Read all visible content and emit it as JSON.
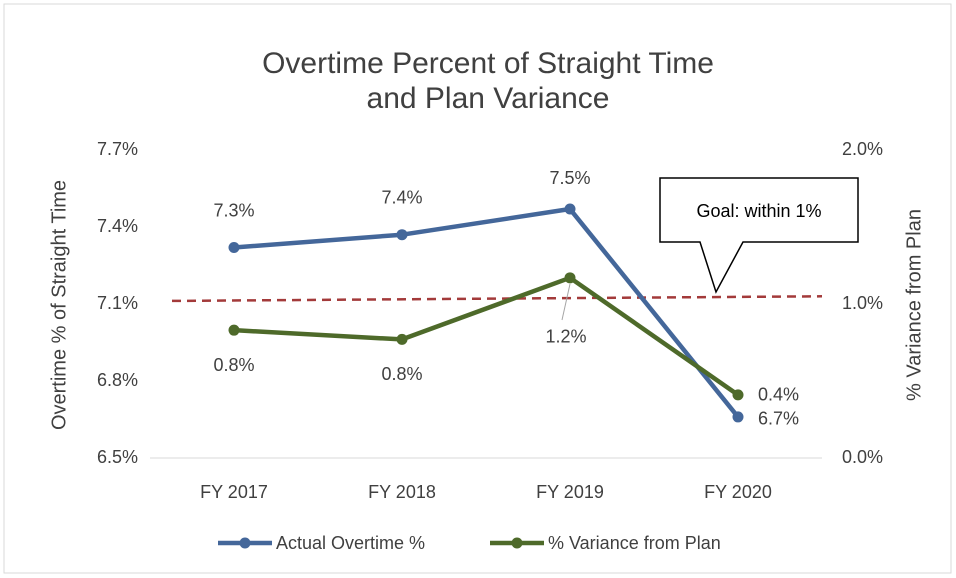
{
  "chart_data": {
    "type": "line",
    "title": [
      "Overtime Percent of Straight Time",
      "and Plan Variance"
    ],
    "ylabel": "Overtime % of Straight Time",
    "y2label": "% Variance from Plan",
    "categories": [
      "FY 2017",
      "FY 2018",
      "FY 2019",
      "FY 2020"
    ],
    "series": [
      {
        "name": "Actual Overtime %",
        "color": "#44679a",
        "values": [
          7.32,
          7.37,
          7.47,
          6.66
        ],
        "value_labels": [
          "7.3%",
          "7.4%",
          "7.5%",
          "6.7%"
        ]
      },
      {
        "name": "% Variance from Plan",
        "color": "#4e6a2a",
        "axis": "y2",
        "values": [
          0.83,
          0.77,
          1.17,
          0.41
        ],
        "value_labels": [
          "0.8%",
          "0.8%",
          "1.2%",
          "0.4%"
        ]
      }
    ],
    "goal_line": {
      "color": "#a33a3a",
      "axis": "y2",
      "values": [
        1.02,
        1.05
      ]
    },
    "annotation": "Goal: within 1%",
    "ylim": [
      6.5,
      7.7
    ],
    "yticks": [
      {
        "value": 6.5,
        "label": "6.5%"
      },
      {
        "value": 6.8,
        "label": "6.8%"
      },
      {
        "value": 7.1,
        "label": "7.1%"
      },
      {
        "value": 7.4,
        "label": "7.4%"
      },
      {
        "value": 7.7,
        "label": "7.7%"
      }
    ],
    "y2lim": [
      0,
      2
    ],
    "y2ticks": [
      {
        "value": 0,
        "label": "0.0%"
      },
      {
        "value": 1,
        "label": "1.0%"
      },
      {
        "value": 2,
        "label": "2.0%"
      }
    ],
    "legend": "bottom"
  }
}
